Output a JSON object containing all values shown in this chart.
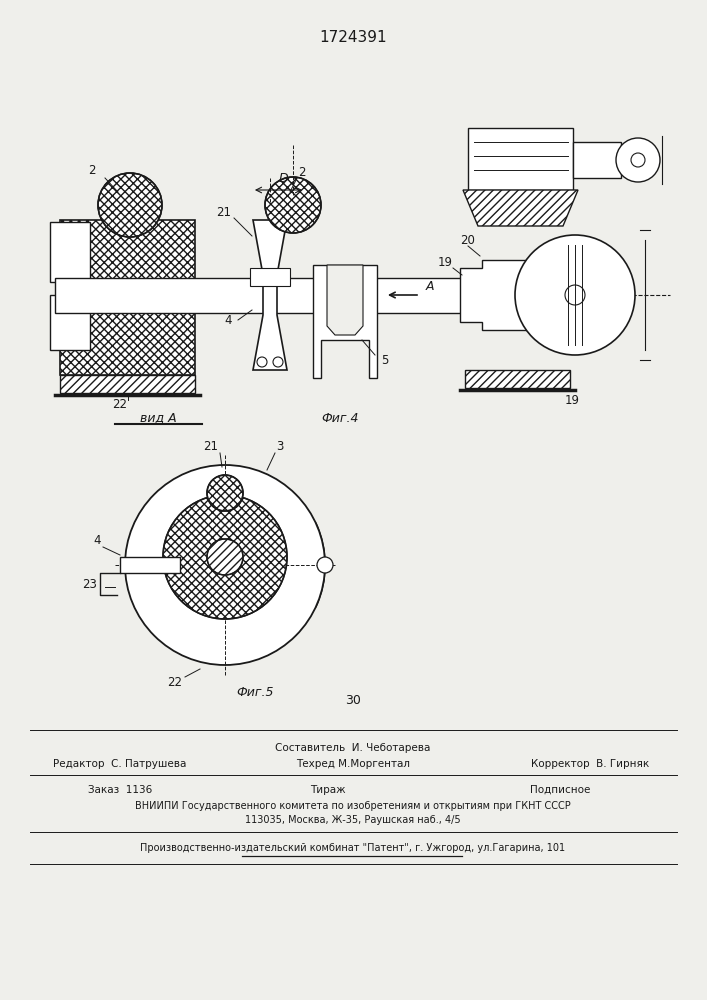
{
  "patent_number": "1724391",
  "page_number": "30",
  "bg_color": "#efefeb",
  "line_color": "#1a1a1a",
  "footer": {
    "sostavitel": "Составитель  И. Чеботарева",
    "redaktor": "Редактор  С. Патрушева",
    "tehred": "Техред М.Моргентал",
    "korrektor": "Корректор  В. Гирняк",
    "zakaz": "Заказ  1136",
    "tirazh": "Тираж",
    "podpisnoe": "Подписное",
    "vniiipi": "ВНИИПИ Государственного комитета по изобретениям и открытиям при ГКНТ СССР",
    "address": "113035, Москва, Ж-35, Раушская наб., 4/5",
    "proizv": "Производственно-издательский комбинат \"Патент\", г. Ужгород, ул.Гагарина, 101"
  },
  "vid_A": "вид A",
  "fig4_caption": "Фиг.4",
  "fig5_caption": "Фиг.5"
}
